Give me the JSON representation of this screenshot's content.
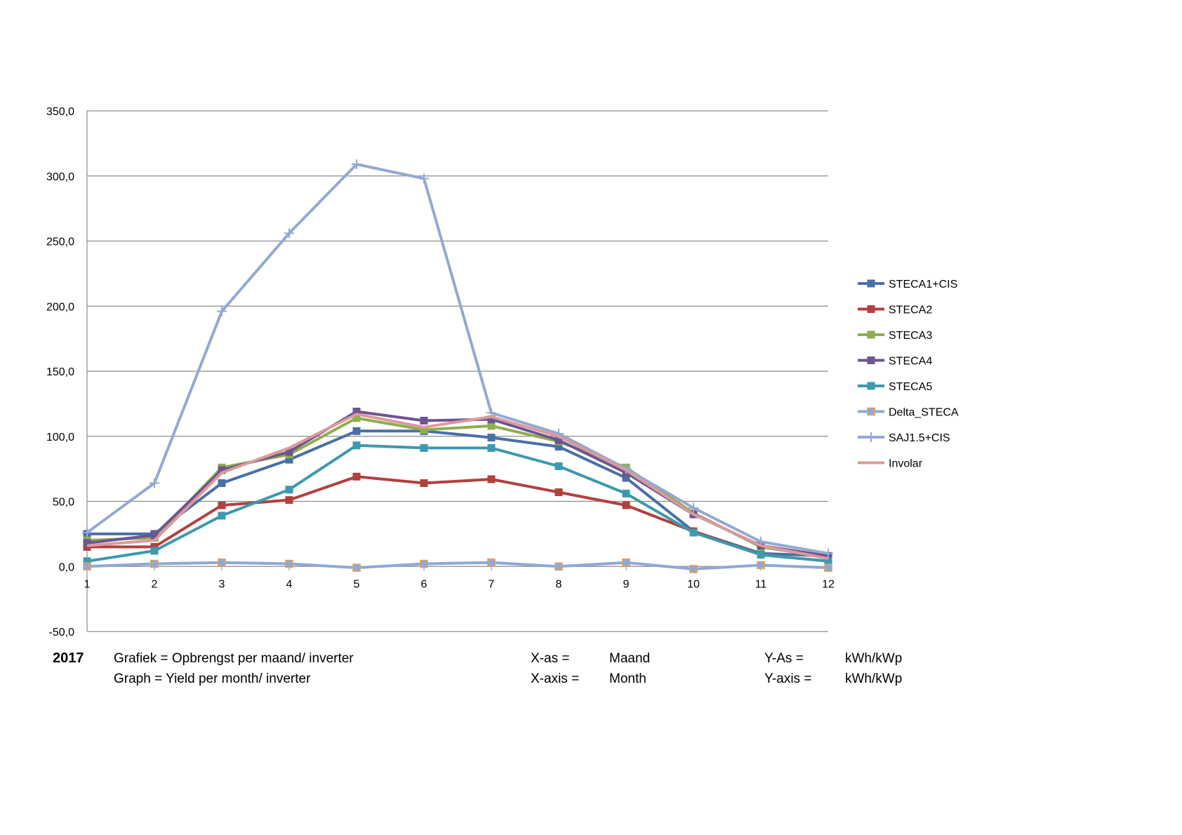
{
  "chart_data": {
    "type": "line",
    "categories": [
      "1",
      "2",
      "3",
      "4",
      "5",
      "6",
      "7",
      "8",
      "9",
      "10",
      "11",
      "12"
    ],
    "y_ticks": [
      "350,0",
      "300,0",
      "250,0",
      "200,0",
      "150,0",
      "100,0",
      "50,0",
      "0,0",
      "-50,0"
    ],
    "ylim": [
      -50,
      350
    ],
    "grid": "horizontal",
    "legend_position": "right",
    "series": [
      {
        "name": "STECA1+CIS",
        "color": "#4a6fa5",
        "marker": "square",
        "values": [
          25,
          25,
          64,
          82,
          104,
          104,
          99,
          92,
          68,
          27,
          10,
          8
        ]
      },
      {
        "name": "STECA2",
        "color": "#b0413e",
        "marker": "square",
        "values": [
          15,
          15,
          47,
          51,
          69,
          64,
          67,
          57,
          47,
          27,
          9,
          4
        ]
      },
      {
        "name": "STECA3",
        "color": "#8fae4f",
        "marker": "square",
        "values": [
          20,
          22,
          76,
          86,
          114,
          105,
          108,
          96,
          76,
          41,
          15,
          7
        ]
      },
      {
        "name": "STECA4",
        "color": "#6c5591",
        "marker": "square",
        "values": [
          18,
          24,
          74,
          88,
          119,
          112,
          113,
          97,
          72,
          40,
          16,
          8
        ]
      },
      {
        "name": "STECA5",
        "color": "#3d99ad",
        "marker": "square",
        "values": [
          4,
          12,
          39,
          59,
          93,
          91,
          91,
          77,
          56,
          26,
          9,
          4
        ]
      },
      {
        "name": "Delta_STECA",
        "color": "#8ea9d6",
        "marker": "square-orange",
        "values": [
          0,
          2,
          3,
          2,
          -1,
          2,
          3,
          0,
          3,
          -2,
          1,
          -1
        ]
      },
      {
        "name": "SAJ1.5+CIS",
        "color": "#93a9d2",
        "marker": "plus",
        "values": [
          26,
          64,
          196,
          256,
          309,
          298,
          118,
          102,
          75,
          45,
          19,
          10
        ]
      },
      {
        "name": "Involar",
        "color": "#dc9a9b",
        "marker": "none",
        "values": [
          16,
          20,
          72,
          91,
          117,
          107,
          115,
          100,
          74,
          40,
          16,
          6
        ]
      }
    ]
  },
  "caption": {
    "year": "2017",
    "graph_nl": "Grafiek = Opbrengst per maand/ inverter",
    "graph_en": "Graph = Yield per month/ inverter",
    "xaxis_nl_label": "X-as =",
    "xaxis_nl_value": "Maand",
    "xaxis_en_label": "X-axis =",
    "xaxis_en_value": "Month",
    "yaxis_nl_label": "Y-As =",
    "yaxis_nl_value": "kWh/kWp",
    "yaxis_en_label": "Y-axis =",
    "yaxis_en_value": "kWh/kWp"
  }
}
